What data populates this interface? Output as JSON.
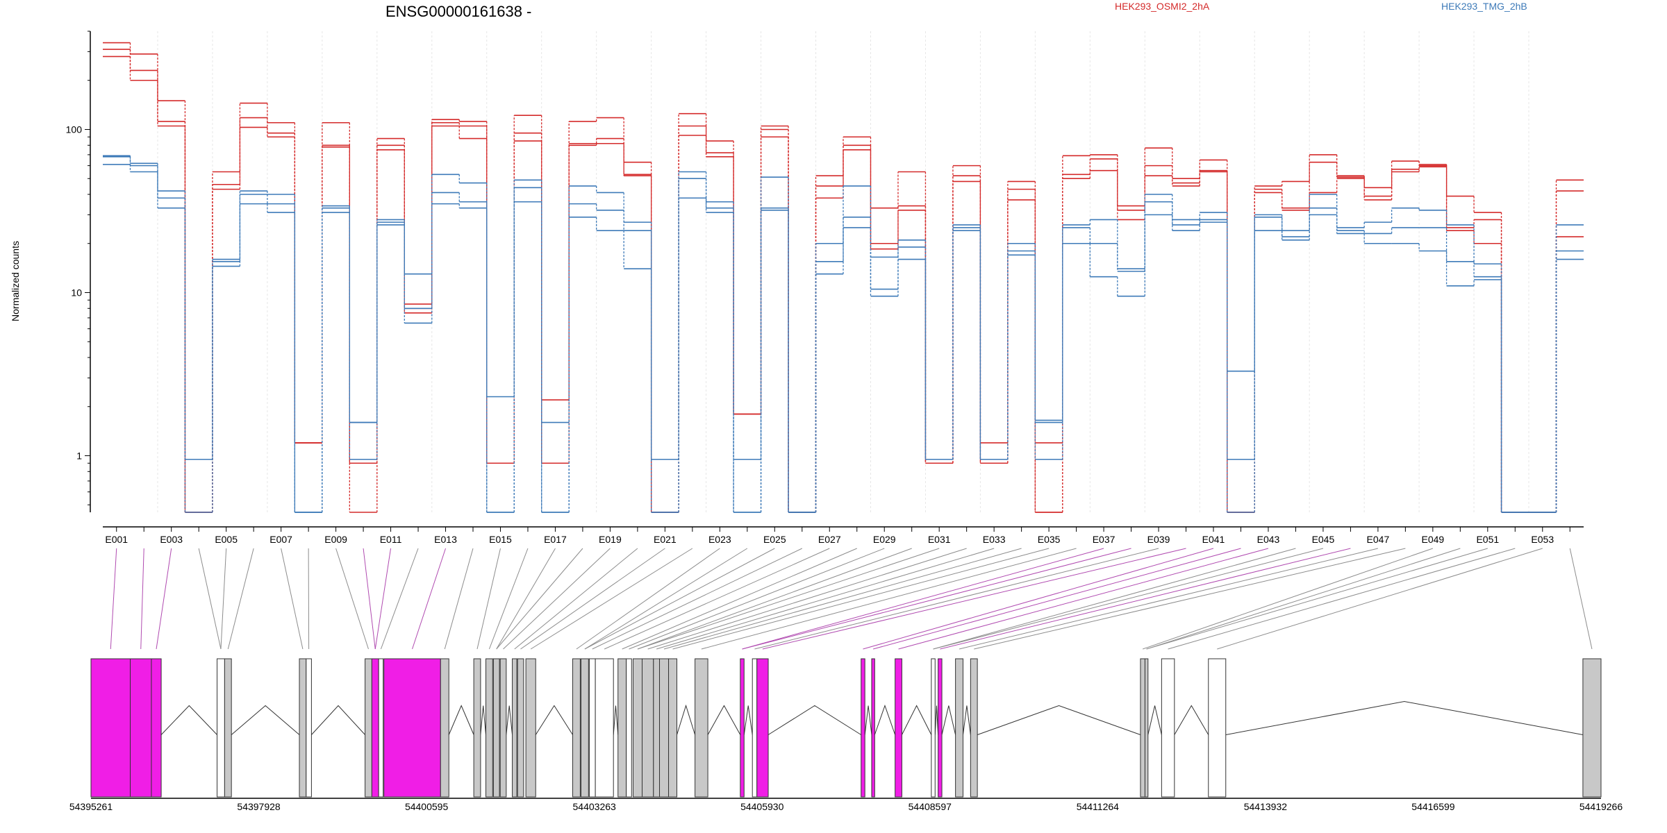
{
  "chart_data": {
    "type": "line",
    "title": "ENSG00000161638 -",
    "ylabel": "Normalized counts",
    "yscale": "log",
    "ylim": [
      0.45,
      400
    ],
    "y_ticks": [
      1,
      10,
      100
    ],
    "y_tick_labels": [
      "1",
      "10",
      "100"
    ],
    "x_labels_shown": [
      "E001",
      "E003",
      "E005",
      "E007",
      "E009",
      "E011",
      "E013",
      "E015",
      "E017",
      "E019",
      "E021",
      "E023",
      "E025",
      "E027",
      "E029",
      "E031",
      "E033",
      "E035",
      "E037",
      "E039",
      "E041",
      "E043",
      "E045",
      "E047",
      "E049",
      "E051",
      "E053"
    ],
    "legend": [
      {
        "name": "HEK293_OSMI2_2hA",
        "color": "#d42a2a"
      },
      {
        "name": "HEK293_TMG_2hB",
        "color": "#3d7ab8"
      }
    ],
    "genome_ticks": [
      "54395261",
      "54397928",
      "54400595",
      "54403263",
      "54405930",
      "54408597",
      "54411264",
      "54413932",
      "54416599",
      "54419266"
    ],
    "series": [
      {
        "name": "HEK293_OSMI2_2hA",
        "group": "HEK293_OSMI2_2hA",
        "values": [
          340,
          290,
          150,
          0.45,
          55,
          145,
          110,
          1.2,
          110,
          0.45,
          88,
          8.5,
          115,
          112,
          0.9,
          122,
          2.2,
          112,
          118,
          63,
          0.45,
          125,
          85,
          1.8,
          105,
          0.45,
          52,
          90,
          33,
          55,
          0.9,
          60,
          1.2,
          48,
          0.45,
          69,
          70,
          34,
          77,
          50,
          65,
          0.45,
          45,
          48,
          70,
          51,
          44,
          64,
          60,
          39,
          31,
          0.45,
          0.45,
          49
        ]
      },
      {
        "name": "HEK293_OSMI2_2hA",
        "group": "HEK293_OSMI2_2hA",
        "values": [
          310,
          230,
          112,
          0.45,
          46,
          118,
          95,
          1.2,
          80,
          0.9,
          80,
          8.0,
          110,
          105,
          0.9,
          95,
          0.9,
          82,
          88,
          53,
          0.45,
          105,
          72,
          1.8,
          100,
          0.45,
          45,
          80,
          20,
          34,
          0.9,
          52,
          0.9,
          43,
          0.45,
          53,
          66,
          32,
          60,
          47,
          56,
          0.45,
          43,
          33,
          63,
          52,
          39,
          57,
          61,
          25,
          28,
          0.45,
          0.45,
          42
        ]
      },
      {
        "name": "HEK293_OSMI2_2hA",
        "group": "HEK293_OSMI2_2hA",
        "values": [
          280,
          200,
          105,
          0.45,
          43,
          103,
          90,
          1.2,
          78,
          0.9,
          75,
          7.5,
          105,
          88,
          0.9,
          85,
          0.9,
          80,
          82,
          52,
          0.45,
          92,
          68,
          1.8,
          90,
          0.45,
          38,
          75,
          18.5,
          32,
          0.9,
          48,
          0.9,
          37,
          1.2,
          50,
          56,
          28,
          52,
          45,
          55,
          0.45,
          41,
          32,
          41,
          50,
          37,
          55,
          59,
          24,
          20,
          0.45,
          0.45,
          22
        ]
      },
      {
        "name": "HEK293_TMG_2hB",
        "group": "HEK293_TMG_2hB",
        "values": [
          69,
          62,
          42,
          0.95,
          16,
          42,
          40,
          0.45,
          34,
          1.6,
          28,
          13,
          53,
          47,
          2.3,
          49,
          0.45,
          45,
          41,
          27,
          0.95,
          55,
          36,
          0.95,
          51,
          0.45,
          20,
          45,
          16.5,
          21,
          0.95,
          26,
          0.95,
          20,
          1.65,
          26,
          28,
          14,
          40,
          28,
          31,
          3.3,
          30,
          24,
          40,
          25,
          27,
          33,
          32,
          26,
          15,
          0.45,
          0.45,
          26
        ]
      },
      {
        "name": "HEK293_TMG_2hB",
        "group": "HEK293_TMG_2hB",
        "values": [
          68,
          60,
          38,
          0.95,
          15.5,
          40,
          35,
          0.45,
          33,
          1.6,
          27,
          8,
          41,
          36,
          0.45,
          44,
          1.6,
          35,
          32,
          24,
          0.45,
          50,
          33,
          0.45,
          33,
          0.45,
          15.5,
          29,
          10.5,
          19,
          0.95,
          25,
          0.95,
          18,
          1.6,
          25,
          20,
          13.5,
          36,
          26,
          28,
          0.95,
          29,
          22,
          33,
          24,
          23,
          25,
          25,
          15.5,
          12.5,
          0.45,
          0.45,
          18
        ]
      },
      {
        "name": "HEK293_TMG_2hB",
        "group": "HEK293_TMG_2hB",
        "values": [
          61,
          55,
          33,
          0.45,
          14.5,
          35,
          31,
          0.45,
          31,
          0.95,
          26,
          6.5,
          35,
          33,
          0.45,
          36,
          0.45,
          29,
          24,
          14,
          0.45,
          38,
          31,
          0.45,
          32,
          0.45,
          13,
          25,
          9.5,
          16,
          0.95,
          24,
          0.95,
          17,
          0.95,
          20,
          12.5,
          9.5,
          30,
          24,
          27,
          0.45,
          24,
          21,
          30,
          23,
          20,
          20,
          18,
          11,
          12,
          0.45,
          0.45,
          16
        ]
      }
    ]
  },
  "gene_model": {
    "highlight_color": "#f01ee6",
    "exon_color": "#c8c8c8"
  }
}
